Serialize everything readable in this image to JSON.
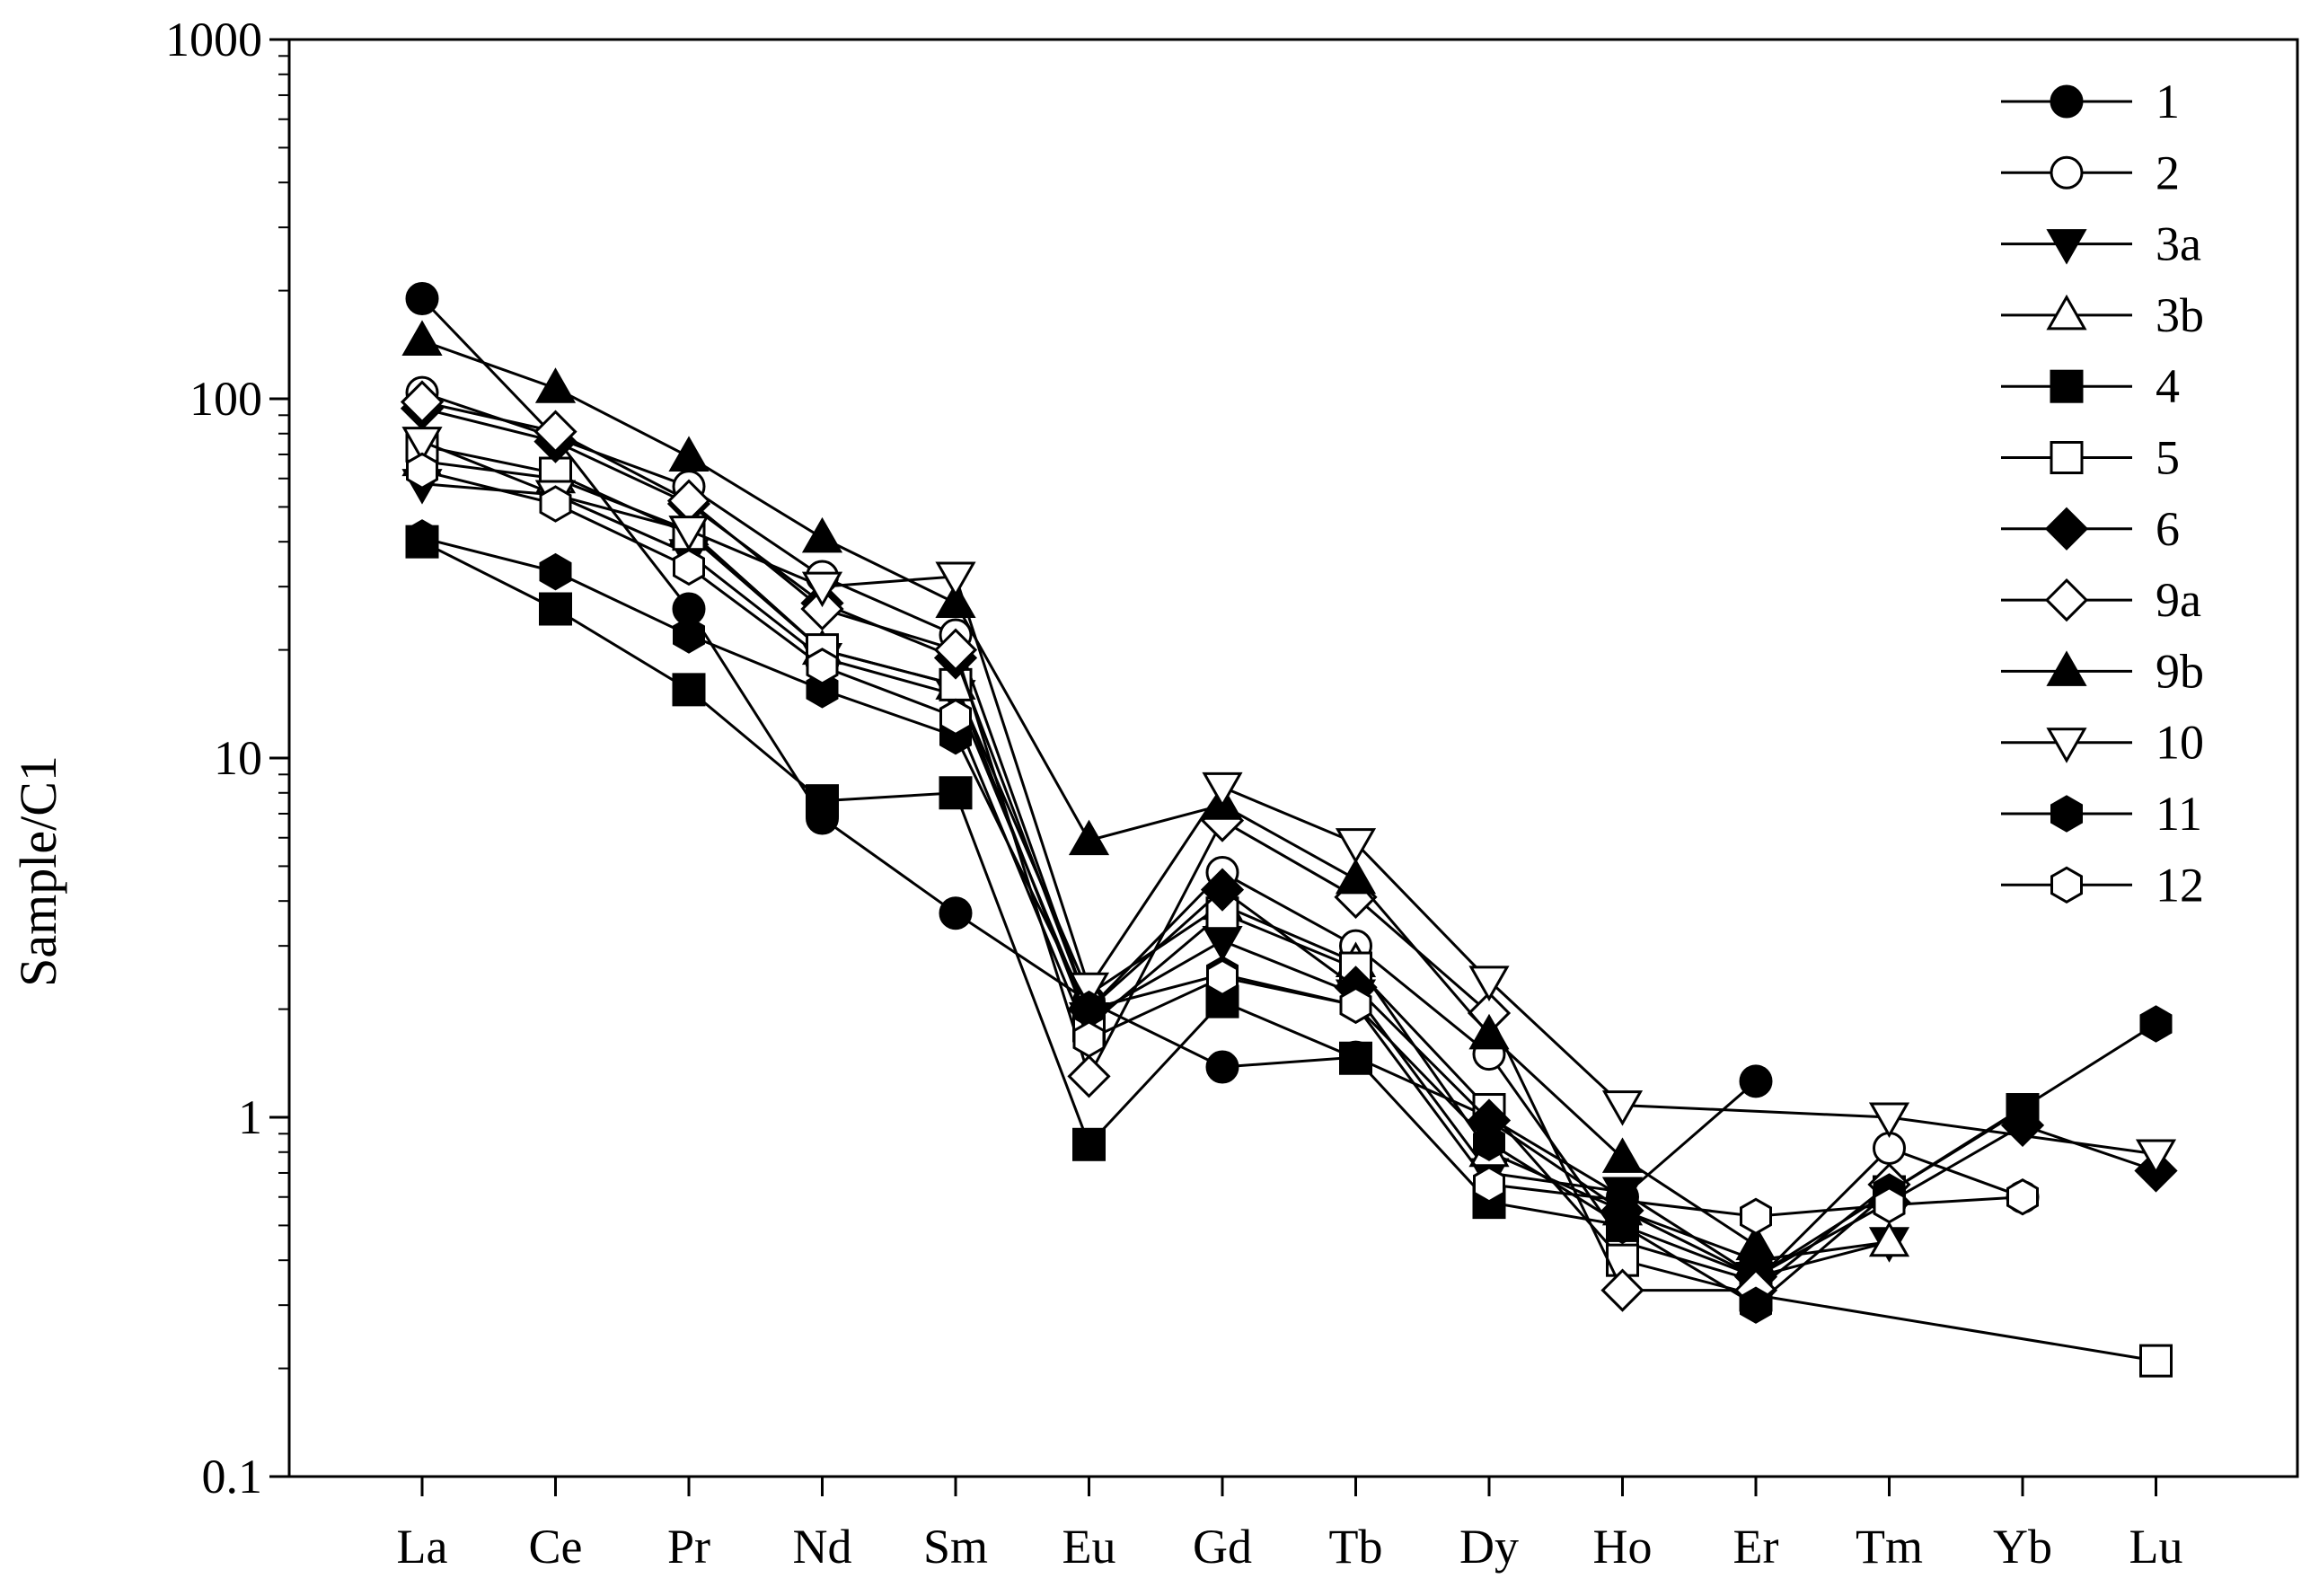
{
  "chart_data": {
    "type": "line",
    "title": "",
    "xlabel": "",
    "ylabel": "Sample/C1",
    "yscale": "log",
    "ylim": [
      0.1,
      1000
    ],
    "grid": false,
    "legend_position": "top-right",
    "categories": [
      "La",
      "Ce",
      "Pr",
      "Nd",
      "Sm",
      "Eu",
      "Gd",
      "Tb",
      "Dy",
      "Ho",
      "Er",
      "Tm",
      "Yb",
      "Lu"
    ],
    "y_ticks": [
      "0.1",
      "1",
      "10",
      "100",
      "1000"
    ],
    "series": [
      {
        "name": "1",
        "marker": "circle",
        "fill": "black",
        "values": [
          190,
          78,
          26,
          6.8,
          3.7,
          2.1,
          1.38,
          1.47,
          1.0,
          0.6,
          1.26,
          null,
          null,
          null
        ]
      },
      {
        "name": "2",
        "marker": "circle",
        "fill": "white",
        "values": [
          104,
          78,
          57,
          32,
          22,
          2.0,
          4.8,
          3.0,
          1.5,
          0.45,
          0.35,
          0.82,
          0.6,
          null
        ]
      },
      {
        "name": "3a",
        "marker": "triangle-down",
        "fill": "black",
        "values": [
          58,
          54,
          37,
          19,
          15,
          1.9,
          3.1,
          2.2,
          0.7,
          0.62,
          0.36,
          0.45,
          null,
          null
        ]
      },
      {
        "name": "3b",
        "marker": "triangle-up",
        "fill": "white",
        "values": [
          67,
          60,
          43,
          20,
          16,
          2.2,
          3.9,
          2.7,
          0.8,
          0.55,
          0.4,
          0.45,
          null,
          null
        ]
      },
      {
        "name": "4",
        "marker": "square",
        "fill": "black",
        "values": [
          40,
          26,
          15.5,
          7.6,
          8.0,
          0.84,
          2.1,
          1.46,
          0.58,
          0.5,
          0.36,
          0.62,
          1.05,
          null
        ]
      },
      {
        "name": "5",
        "marker": "square",
        "fill": "white",
        "values": [
          74,
          62,
          42,
          20,
          16,
          1.8,
          3.7,
          2.6,
          1.05,
          0.4,
          0.32,
          null,
          null,
          0.21
        ]
      },
      {
        "name": "6",
        "marker": "diamond",
        "fill": "black",
        "values": [
          94,
          76,
          51,
          27,
          19,
          2.0,
          4.3,
          2.3,
          0.98,
          0.55,
          0.36,
          0.58,
          0.95,
          0.71
        ]
      },
      {
        "name": "9a",
        "marker": "diamond",
        "fill": "white",
        "values": [
          98,
          81,
          52,
          26,
          20,
          1.3,
          6.7,
          4.1,
          1.95,
          0.33,
          0.33,
          0.65,
          null,
          null
        ]
      },
      {
        "name": "9b",
        "marker": "triangle-up",
        "fill": "black",
        "values": [
          145,
          107,
          69,
          41,
          27,
          5.9,
          7.4,
          4.6,
          1.7,
          0.77,
          0.44,
          null,
          null,
          null
        ]
      },
      {
        "name": "10",
        "marker": "triangle-down",
        "fill": "white",
        "values": [
          76,
          54,
          43,
          30,
          32,
          2.3,
          8.3,
          5.8,
          2.4,
          1.08,
          null,
          1.0,
          null,
          0.79
        ]
      },
      {
        "name": "11",
        "marker": "hexagon",
        "fill": "black",
        "values": [
          41,
          33,
          22,
          15.5,
          11.5,
          2.0,
          2.5,
          2.05,
          0.85,
          0.5,
          0.3,
          0.62,
          null,
          1.82
        ]
      },
      {
        "name": "12",
        "marker": "hexagon",
        "fill": "white",
        "values": [
          63,
          51,
          34,
          18,
          13,
          1.65,
          2.45,
          2.05,
          0.65,
          null,
          0.53,
          0.57,
          0.6,
          null
        ]
      }
    ]
  }
}
